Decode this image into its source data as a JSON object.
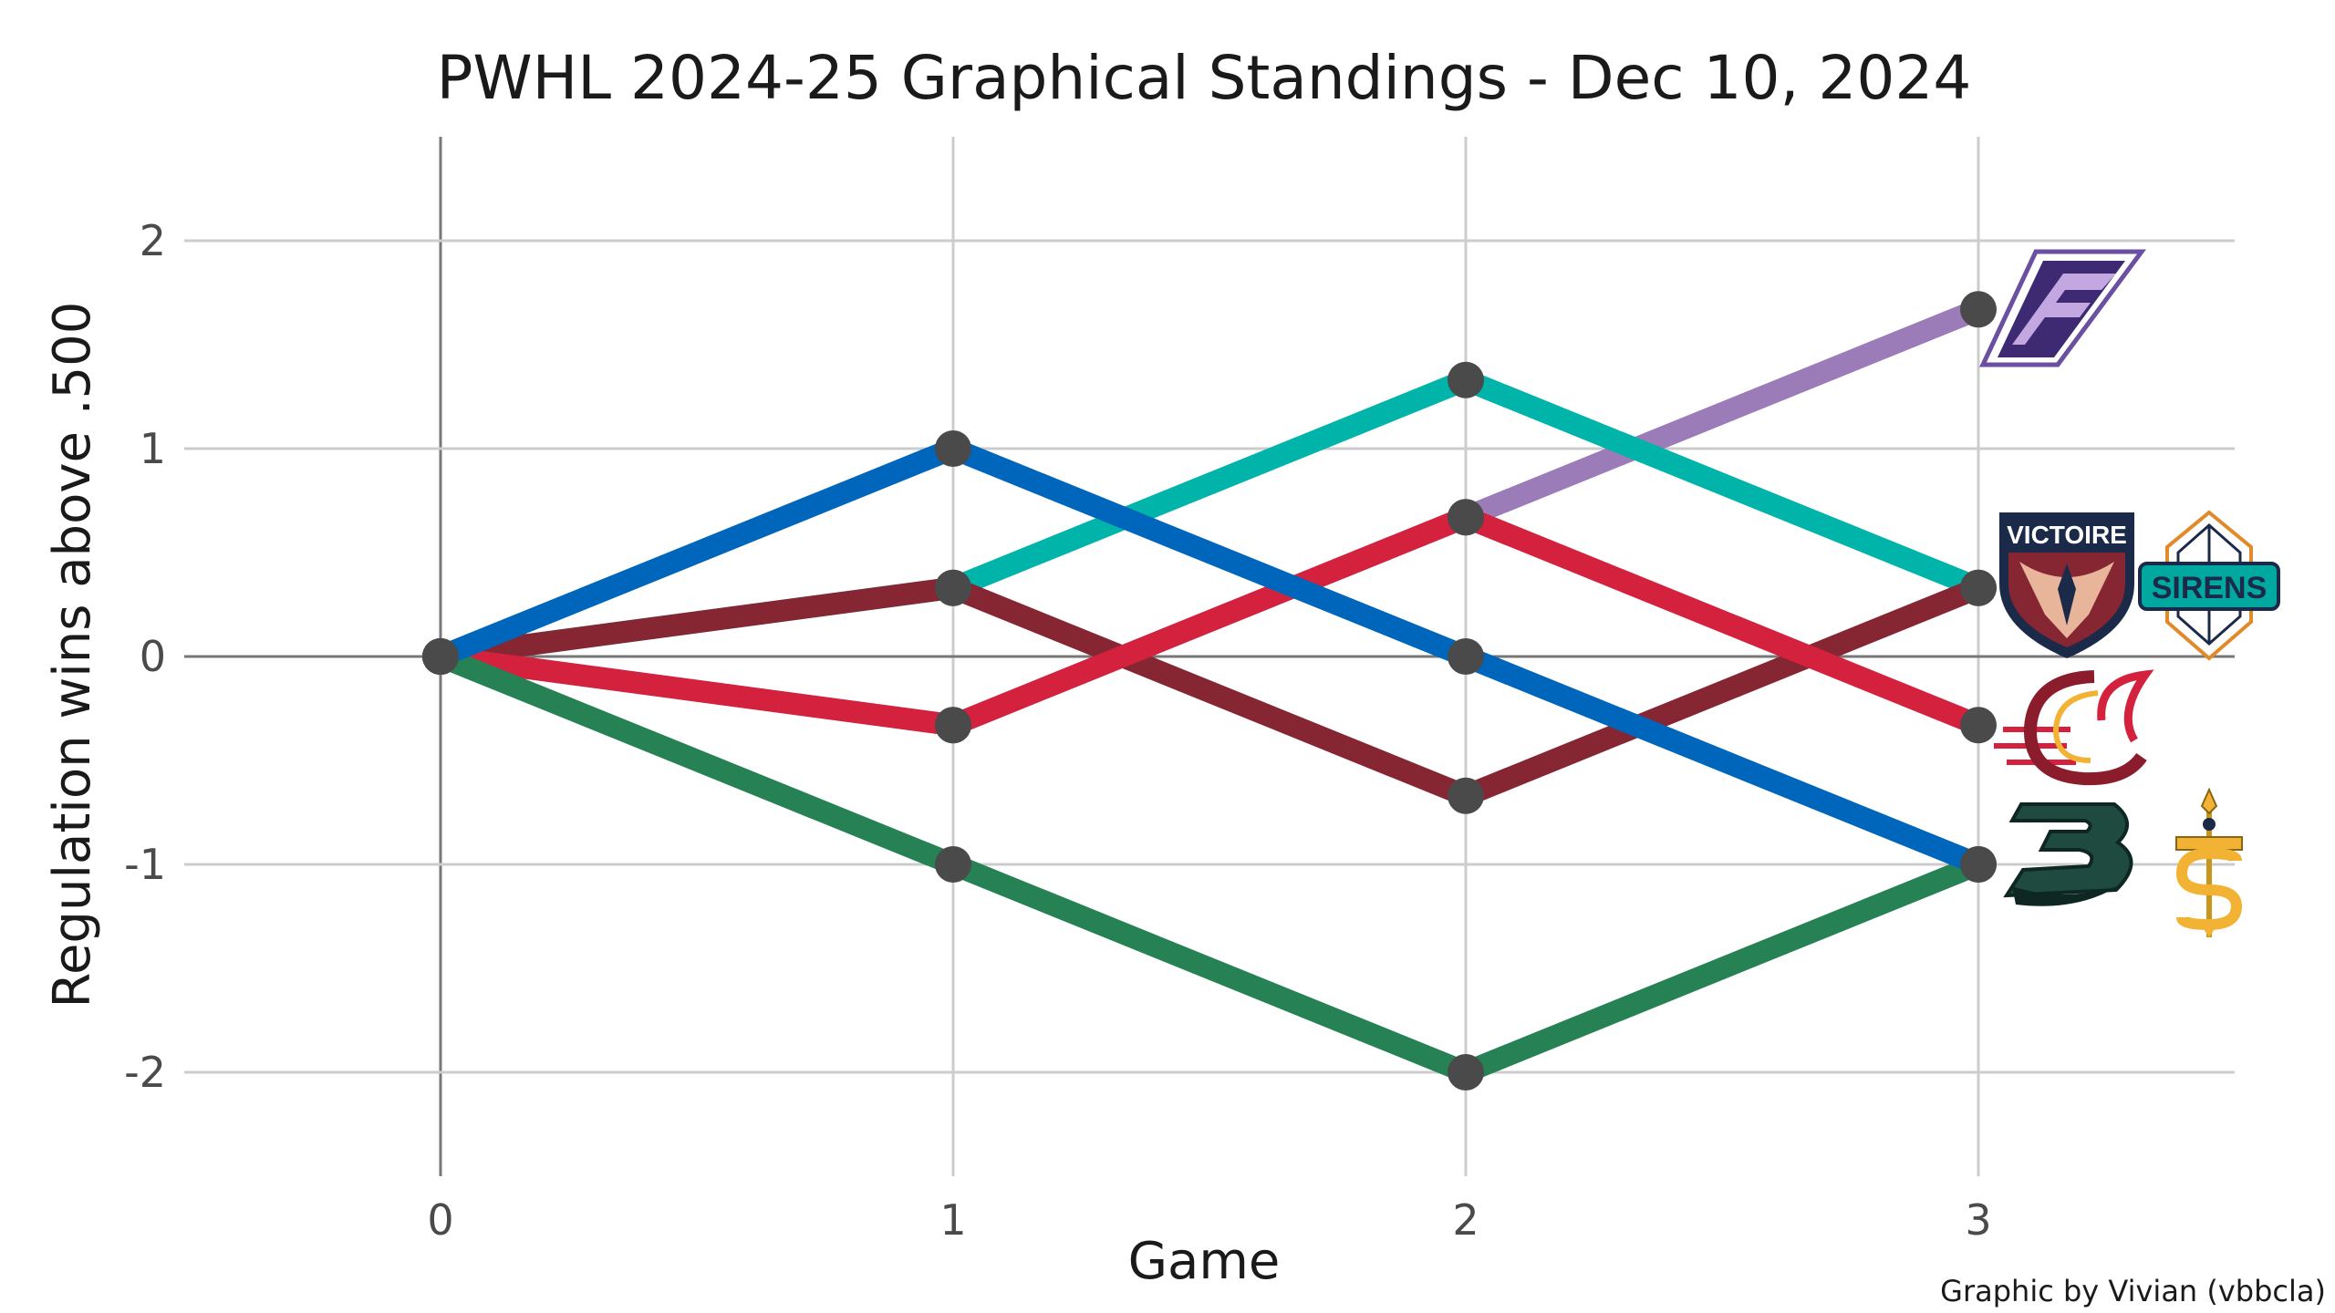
{
  "chart_data": {
    "type": "line",
    "title": "PWHL 2024-25 Graphical Standings - Dec 10, 2024",
    "xlabel": "Game",
    "ylabel": "Regulation wins above .500",
    "credit": "Graphic by Vivian (vbbcla)",
    "x": [
      0,
      1,
      2,
      3
    ],
    "xlim": [
      -0.5,
      3.5
    ],
    "ylim": [
      -2.5,
      2.5
    ],
    "x_ticks": [
      "0",
      "1",
      "2",
      "3"
    ],
    "y_ticks": [
      2,
      1,
      0,
      -1,
      -2
    ],
    "y_tick_labels": [
      "2",
      "1",
      "0",
      "-1",
      "-2"
    ],
    "grid": true,
    "line_color": "#4a4a4a",
    "series": [
      {
        "logo": "minnesota-frost-logo",
        "color": "#9b7bb8",
        "values": [
          0,
          -0.33,
          0.67,
          1.67
        ]
      },
      {
        "logo": "new-york-sirens-logo",
        "color": "#00b4aa",
        "values": [
          0,
          0.33,
          1.33,
          0.33
        ]
      },
      {
        "logo": "montreal-victoire-logo",
        "color": "#862633",
        "values": [
          0,
          0.33,
          -0.67,
          0.33
        ]
      },
      {
        "logo": "ottawa-charge-logo",
        "color": "#d4213d",
        "values": [
          0,
          -0.33,
          0.67,
          -0.33
        ]
      },
      {
        "logo": "boston-fleet-logo",
        "color": "#268254",
        "values": [
          0,
          -1,
          -2,
          -1
        ]
      },
      {
        "logo": "toronto-sceptres-logo",
        "color": "#0066bb",
        "values": [
          0,
          1,
          0,
          -1
        ]
      }
    ],
    "logo_labels": {
      "victoire": "VICTOIRE",
      "sirens": "SIRENS"
    }
  }
}
